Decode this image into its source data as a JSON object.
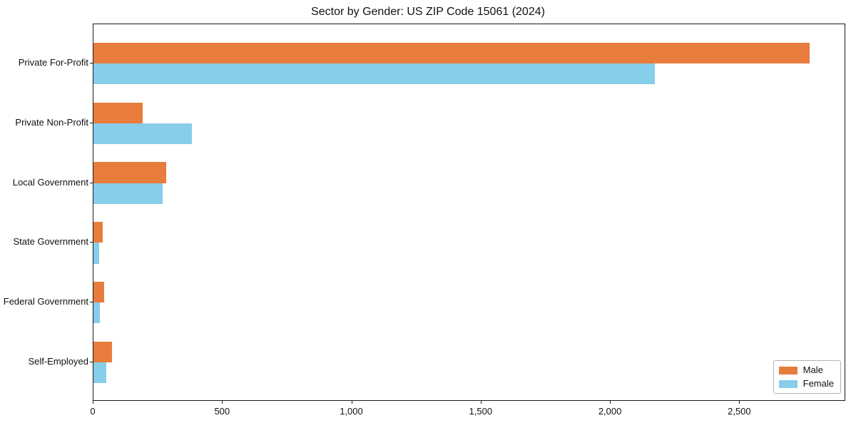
{
  "chart_data": {
    "type": "bar",
    "orientation": "horizontal",
    "title": "Sector by Gender: US ZIP Code 15061 (2024)",
    "categories": [
      "Private For-Profit",
      "Private Non-Profit",
      "Local Government",
      "State Government",
      "Federal Government",
      "Self-Employed"
    ],
    "series": [
      {
        "name": "Male",
        "color": "#e87c3c",
        "values": [
          2770,
          190,
          280,
          37,
          40,
          72
        ]
      },
      {
        "name": "Female",
        "color": "#87ceea",
        "values": [
          2170,
          380,
          268,
          23,
          25,
          49
        ]
      }
    ],
    "xlabel": "",
    "ylabel": "",
    "xlim": [
      0,
      2910
    ],
    "xticks": [
      0,
      500,
      1000,
      1500,
      2000,
      2500
    ],
    "xtick_labels": [
      "0",
      "500",
      "1,000",
      "1,500",
      "2,000",
      "2,500"
    ],
    "grid": false,
    "legend_position": "lower right",
    "plot_background": "#ffffff",
    "spine_color": "#1a1a1a"
  }
}
